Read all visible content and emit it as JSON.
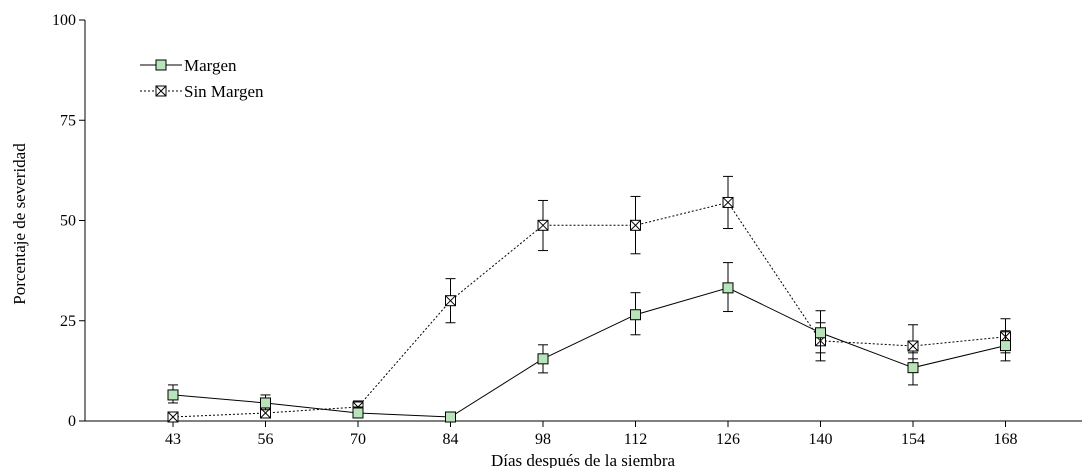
{
  "chart_data": {
    "type": "line",
    "xlabel": "Días después de la siembra",
    "ylabel": "Porcentaje de severidad",
    "categories": [
      "43",
      "56",
      "70",
      "84",
      "98",
      "112",
      "126",
      "140",
      "154",
      "168"
    ],
    "ylim": [
      0,
      100
    ],
    "yticks": [
      "0",
      "25",
      "50",
      "75",
      "100"
    ],
    "legend_position": "top-left",
    "grid": false,
    "series": [
      {
        "name": "Margen",
        "marker": "square-filled",
        "line_style": "solid",
        "color": "#b7e4b8",
        "values": [
          6.5,
          4.5,
          2,
          1,
          15.5,
          26.5,
          33.2,
          22,
          13.3,
          18.8
        ],
        "err_low": [
          4.5,
          2.8,
          1,
          null,
          12,
          21.5,
          27.3,
          17,
          9,
          15
        ],
        "err_high": [
          9,
          6.5,
          3.5,
          null,
          19,
          32,
          39.5,
          27.5,
          17,
          22.5
        ]
      },
      {
        "name": "Sin Margen",
        "marker": "square-crossed",
        "line_style": "dashed",
        "color": "#ffffff",
        "values": [
          1,
          2,
          3.5,
          30,
          48.8,
          48.8,
          54.5,
          20,
          18.7,
          21
        ],
        "err_low": [
          null,
          1,
          2.5,
          24.5,
          42.5,
          41.7,
          48,
          15,
          15.5,
          17
        ],
        "err_high": [
          null,
          3.5,
          5,
          35.5,
          55,
          56,
          61,
          24.5,
          24,
          25.5
        ]
      }
    ]
  }
}
